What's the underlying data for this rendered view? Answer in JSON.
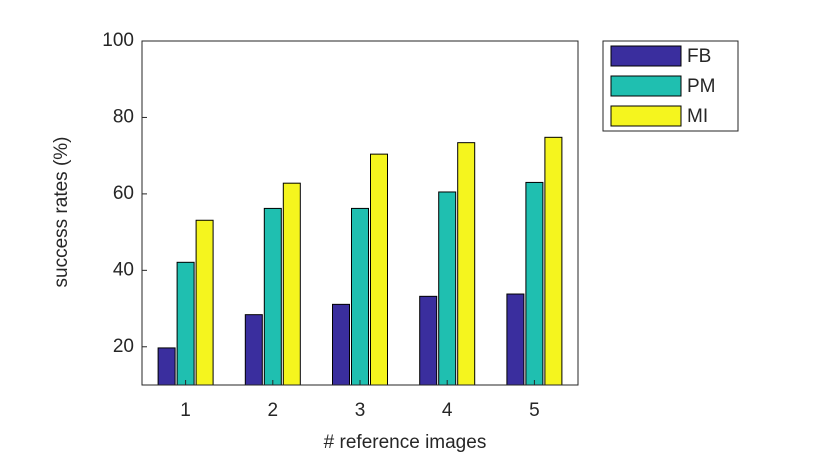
{
  "chart_data": {
    "type": "bar",
    "xlabel": "# reference images",
    "ylabel": "success rates (%)",
    "categories": [
      "1",
      "2",
      "3",
      "4",
      "5"
    ],
    "series": [
      {
        "name": "FB",
        "color": "#3a2e9e",
        "values": [
          19.7,
          28.4,
          31.1,
          33.2,
          33.8
        ]
      },
      {
        "name": "PM",
        "color": "#1fbfb0",
        "values": [
          42.1,
          56.2,
          56.2,
          60.5,
          63.0
        ]
      },
      {
        "name": "MI",
        "color": "#f5f51e",
        "values": [
          53.1,
          62.8,
          70.4,
          73.4,
          74.8
        ]
      }
    ],
    "ylim": [
      10,
      100
    ],
    "yticks": [
      20,
      40,
      60,
      80,
      100
    ],
    "legend": "outside-upper-right"
  }
}
